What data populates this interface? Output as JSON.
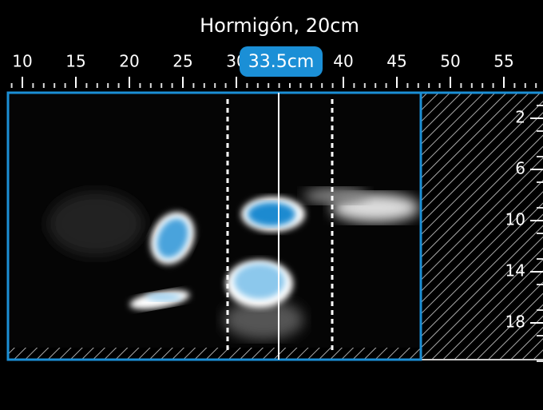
{
  "header": {
    "title": "Hormigón, 20cm"
  },
  "ruler": {
    "ticks": [
      10,
      15,
      20,
      25,
      30,
      40,
      45,
      50,
      55
    ],
    "cursor_label": "33.5cm"
  },
  "depth": {
    "ticks": [
      2,
      6,
      10,
      14,
      18
    ]
  }
}
